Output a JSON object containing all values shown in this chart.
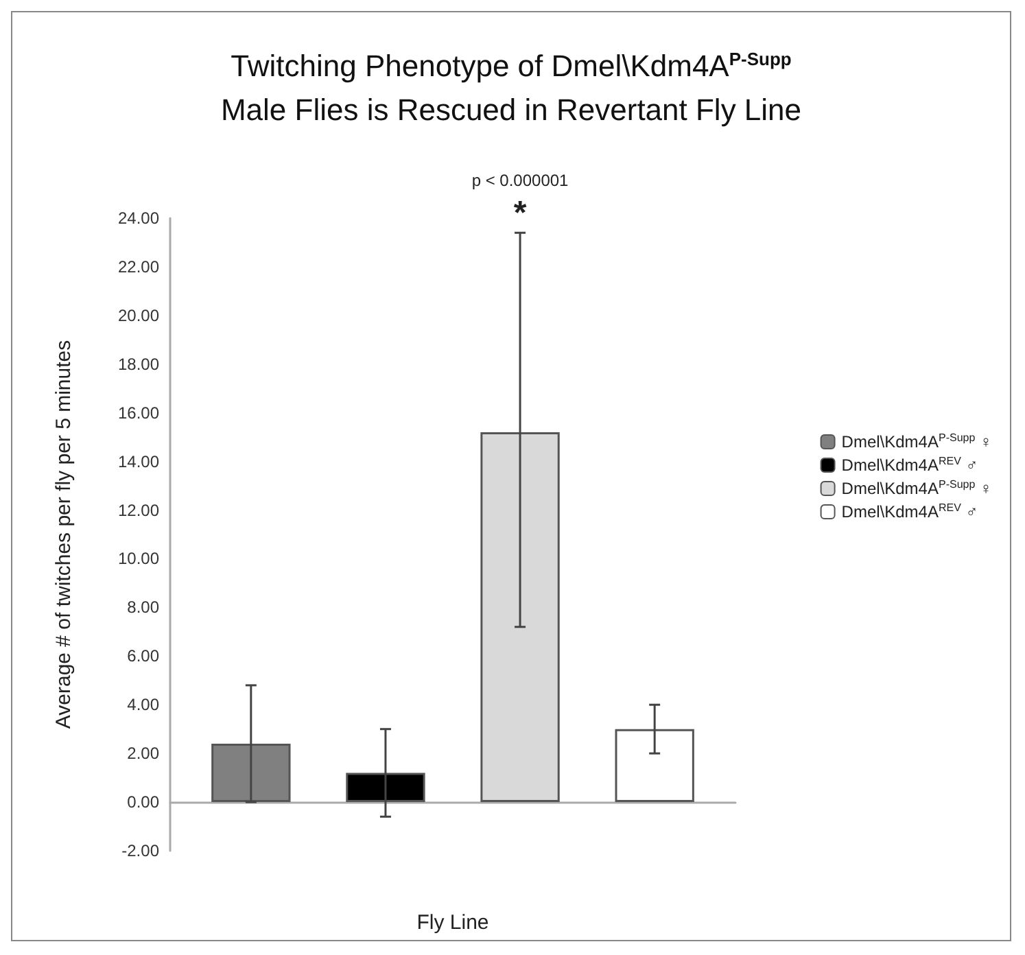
{
  "chart_data": {
    "type": "bar",
    "title": "Twitching Phenotype of Dmel\\Kdm4A$^{P-Supp}$\nMale Flies is Rescued in Revertant Fly Line",
    "xlabel": "Fly Line",
    "ylabel": "Average # of twitches per fly per 5 minutes",
    "categories": [
      null
    ],
    "series": [
      {
        "name": "Dmel\\Kdm4A$^{P-Supp}$ ♀",
        "color": "#808080",
        "values": [
          2.4
        ],
        "errors": [
          2.4
        ]
      },
      {
        "name": "Dmel\\Kdm4A$^{REV}$ ♂",
        "color": "#000000",
        "values": [
          1.2
        ],
        "errors": [
          1.8
        ]
      },
      {
        "name": "Dmel\\Kdm4A$^{P-Supp}$ ♀",
        "color": "#d9d9d9",
        "values": [
          15.2
        ],
        "errors": [
          [
            7.2,
            23.4
          ]
        ]
      },
      {
        "name": "Dmel\\Kdm4A$^{REV}$ ♂",
        "color": "#ffffff",
        "values": [
          3.0
        ],
        "errors": [
          1.0
        ]
      }
    ],
    "ylim": [
      -2,
      24
    ],
    "yticks": [
      {
        "value": -2,
        "label": "-2.00"
      },
      {
        "value": 0,
        "label": "0.00"
      },
      {
        "value": 2,
        "label": "2.00"
      },
      {
        "value": 4,
        "label": "4.00"
      },
      {
        "value": 6,
        "label": "6.00"
      },
      {
        "value": 8,
        "label": "8.00"
      },
      {
        "value": 10,
        "label": "10.00"
      },
      {
        "value": 12,
        "label": "12.00"
      },
      {
        "value": 14,
        "label": "14.00"
      },
      {
        "value": 16,
        "label": "16.00"
      },
      {
        "value": 18,
        "label": "18.00"
      },
      {
        "value": 20,
        "label": "20.00"
      },
      {
        "value": 22,
        "label": "22.00"
      },
      {
        "value": 24,
        "label": "24.00"
      }
    ],
    "legend": "right",
    "annotations": [
      "p < 0.000001",
      "*"
    ]
  }
}
